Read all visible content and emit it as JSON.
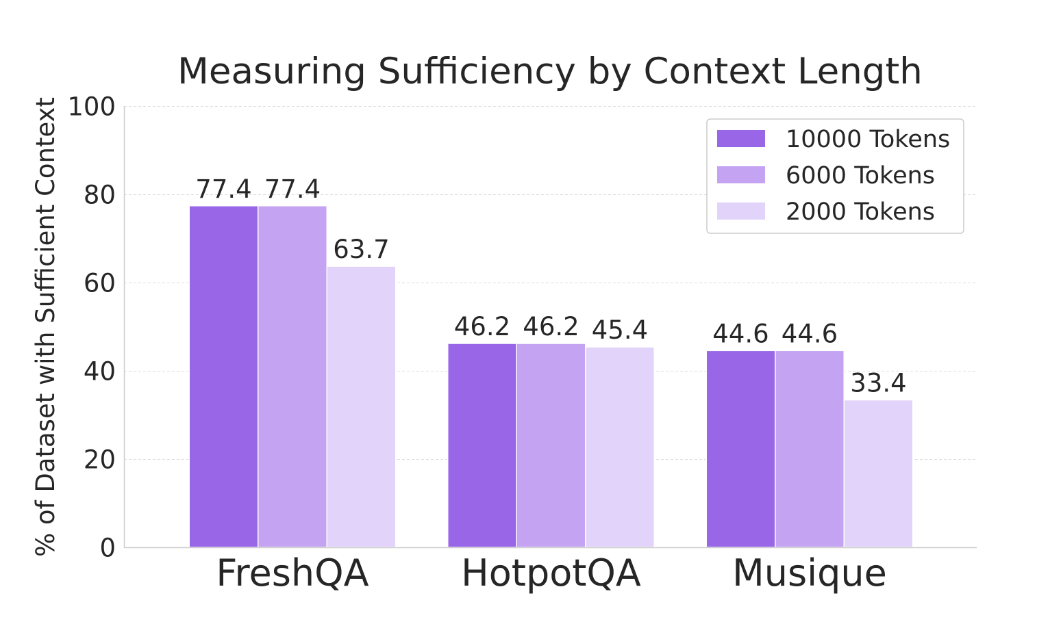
{
  "chart_data": {
    "type": "bar",
    "title": "Measuring Sufficiency by Context Length",
    "xlabel": "",
    "ylabel": "% of Dataset with Sufficient Context",
    "ylim": [
      0,
      100
    ],
    "yticks": [
      0,
      20,
      40,
      60,
      80,
      100
    ],
    "grid": "horizontal dashed",
    "legend_position": "top-right",
    "categories": [
      "FreshQA",
      "HotpotQA",
      "Musique"
    ],
    "series": [
      {
        "name": "10000 Tokens",
        "color": "#9966e8",
        "values": [
          77.4,
          46.2,
          44.6
        ]
      },
      {
        "name": "6000 Tokens",
        "color": "#c4a3f2",
        "values": [
          77.4,
          46.2,
          44.6
        ]
      },
      {
        "name": "2000 Tokens",
        "color": "#e1d3f9",
        "values": [
          63.7,
          45.4,
          33.4
        ]
      }
    ]
  }
}
